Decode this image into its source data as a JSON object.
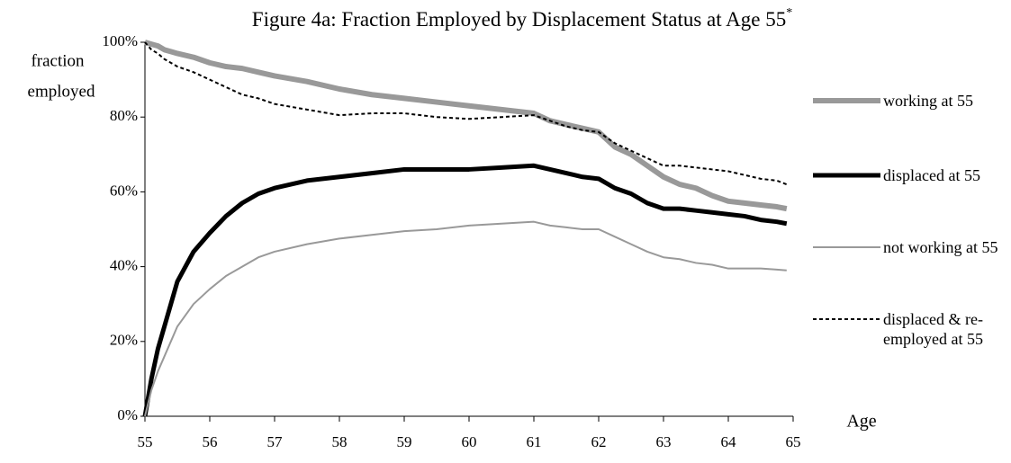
{
  "chart_data": {
    "type": "line",
    "title": "Figure 4a: Fraction Employed by Displacement Status at Age 55",
    "title_marker": "*",
    "ylabel": [
      "fraction",
      "employed"
    ],
    "xlabel": "Age",
    "x": [
      55,
      55.1,
      55.2,
      55.3,
      55.4,
      55.5,
      55.75,
      56,
      56.25,
      56.5,
      56.75,
      57,
      57.5,
      58,
      58.5,
      59,
      59.5,
      60,
      60.5,
      61,
      61.25,
      61.5,
      61.75,
      62,
      62.25,
      62.5,
      62.75,
      63,
      63.25,
      63.5,
      63.75,
      64,
      64.25,
      64.5,
      64.75,
      64.9
    ],
    "series": [
      {
        "name": "working at 55",
        "color": "#999999",
        "width": 6,
        "dash": false,
        "values": [
          100,
          99.5,
          99,
          98,
          97.5,
          97,
          96,
          94.5,
          93.5,
          93,
          92,
          91,
          89.5,
          87.5,
          86,
          85,
          84,
          83,
          82,
          81,
          79,
          78,
          77,
          76,
          72,
          70,
          67,
          64,
          62,
          61,
          59,
          57.5,
          57,
          56.5,
          56,
          55.5
        ]
      },
      {
        "name": "displaced at 55",
        "color": "#000000",
        "width": 5,
        "dash": false,
        "values": [
          0,
          10,
          18,
          24,
          30,
          36,
          44,
          49,
          53.5,
          57,
          59.5,
          61,
          63,
          64,
          65,
          66,
          66,
          66,
          66.5,
          67,
          66,
          65,
          64,
          63.5,
          61,
          59.5,
          57,
          55.5,
          55.5,
          55,
          54.5,
          54,
          53.5,
          52.5,
          52,
          51.5
        ]
      },
      {
        "name": "not working at 55",
        "color": "#999999",
        "width": 2,
        "dash": false,
        "values": [
          0,
          7,
          12,
          16,
          20,
          24,
          30,
          34,
          37.5,
          40,
          42.5,
          44,
          46,
          47.5,
          48.5,
          49.5,
          50,
          51,
          51.5,
          52,
          51,
          50.5,
          50,
          50,
          48,
          46,
          44,
          42.5,
          42,
          41,
          40.5,
          39.5,
          39.5,
          39.5,
          39.2,
          39
        ]
      },
      {
        "name": "displaced & re-employed at 55",
        "color": "#000000",
        "width": 2,
        "dash": true,
        "values": [
          100,
          98,
          97,
          95.5,
          94.5,
          93.5,
          92,
          90,
          88,
          86,
          85,
          83.5,
          82,
          80.5,
          81,
          81,
          80,
          79.5,
          80,
          80.5,
          79,
          77.5,
          76.5,
          76,
          73,
          71,
          69,
          67,
          67,
          66.5,
          66,
          65.5,
          64.5,
          63.5,
          63,
          62
        ]
      }
    ],
    "xlim": [
      55,
      65
    ],
    "xticks": [
      55,
      56,
      57,
      58,
      59,
      60,
      61,
      62,
      63,
      64,
      65
    ],
    "ylim": [
      0,
      100
    ],
    "yticks": [
      {
        "value": 0,
        "label": "0%"
      },
      {
        "value": 20,
        "label": "20%"
      },
      {
        "value": 40,
        "label": "40%"
      },
      {
        "value": 60,
        "label": "60%"
      },
      {
        "value": 80,
        "label": "80%"
      },
      {
        "value": 100,
        "label": "100%"
      }
    ],
    "grid": false,
    "legend": "right"
  }
}
